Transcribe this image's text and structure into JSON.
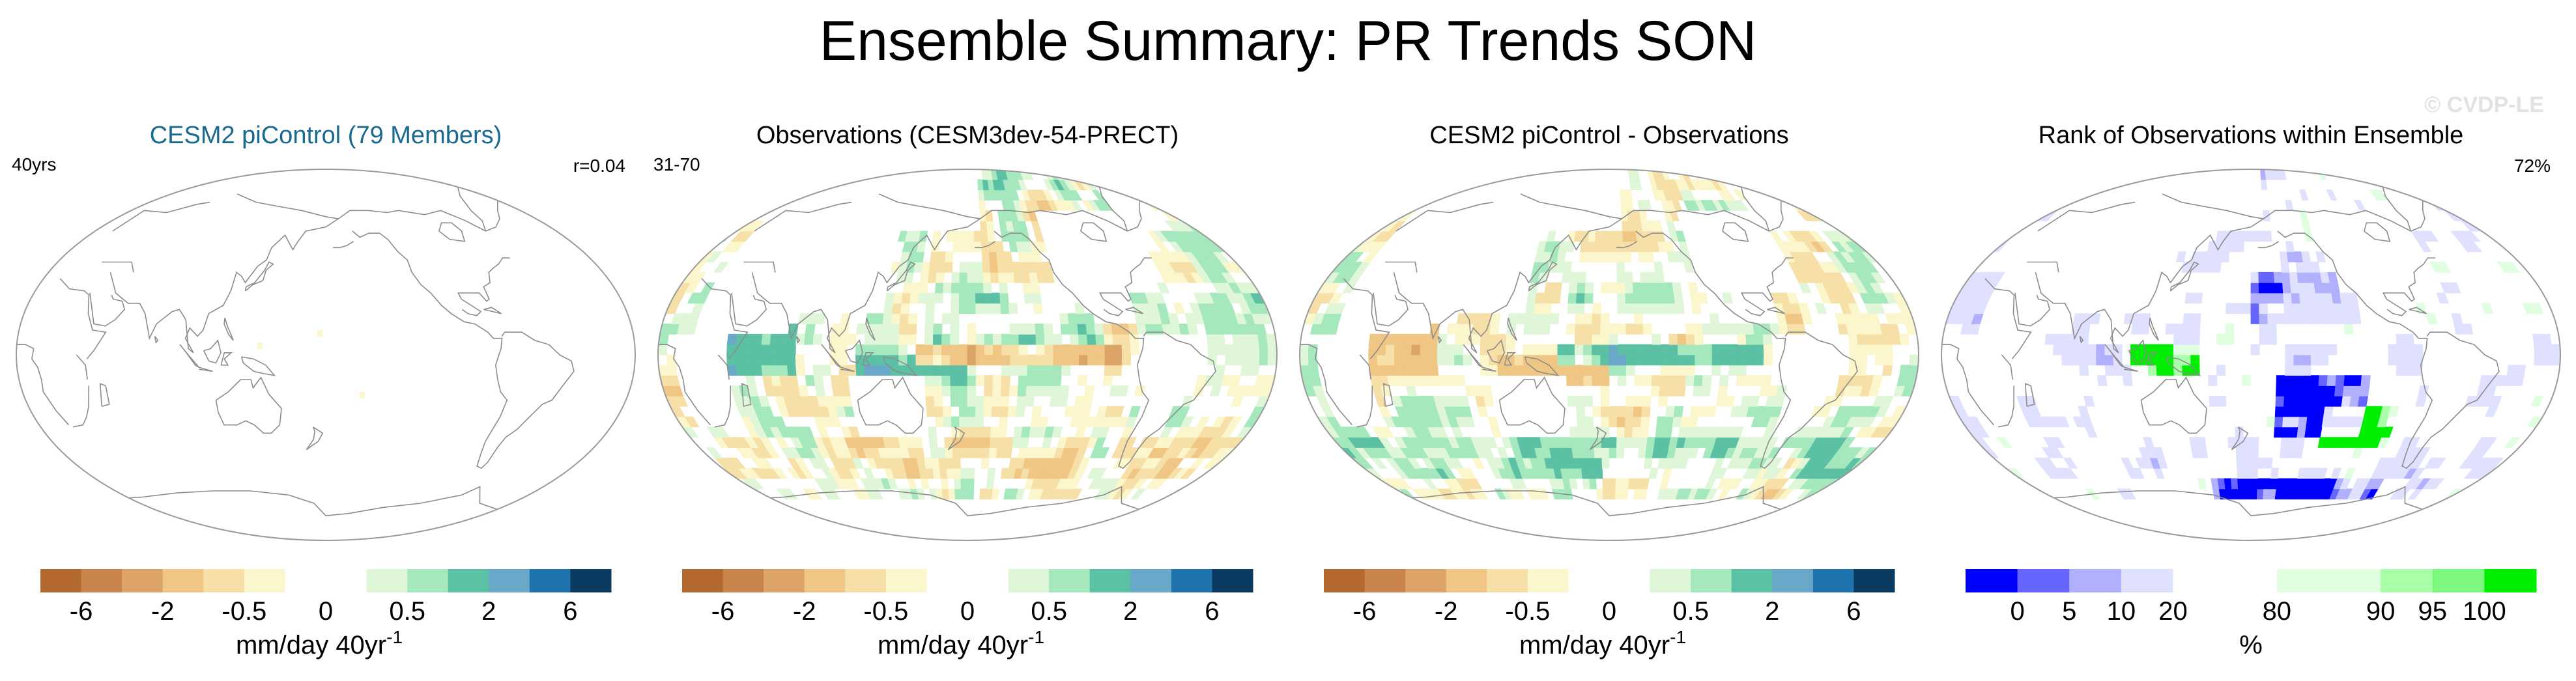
{
  "title": "Ensemble Summary: PR Trends SON",
  "watermark": "© CVDP-LE",
  "colors": {
    "title_blue": "#1a6a8f",
    "coast": "#8c8c8c",
    "border": "#9a9a9a"
  },
  "panels": [
    {
      "id": "cesm2",
      "title": "CESM2 piControl (79 Members)",
      "title_color": "#1a6a8f",
      "left_label": "40yrs",
      "right_label": "r=0.04",
      "field": "weak"
    },
    {
      "id": "obs",
      "title": "Observations (CESM3dev-54-PRECT)",
      "title_color": "#000000",
      "left_label": "31-70",
      "right_label": "",
      "field": "obs"
    },
    {
      "id": "diff",
      "title": "CESM2 piControl - Observations",
      "title_color": "#000000",
      "left_label": "",
      "right_label": "",
      "field": "diff"
    },
    {
      "id": "rank",
      "title": "Rank of Observations within Ensemble",
      "title_color": "#000000",
      "left_label": "",
      "right_label": "72%",
      "field": "rank"
    }
  ],
  "chart_data": {
    "type": "heatmap",
    "title": "Ensemble Summary: PR Trends SON",
    "projection": "global robinson, pacific-centered",
    "trend_colorbar": {
      "colors": [
        "#b46a2e",
        "#c8844a",
        "#dda468",
        "#f0c685",
        "#f6e0a7",
        "#fcf6cc",
        "#ffffff",
        "#ffffff",
        "#dff7d8",
        "#a5e8bd",
        "#5bc0a4",
        "#6aa8c9",
        "#1f74ad",
        "#0b3b60"
      ],
      "tick_labels": [
        "-6",
        "-2",
        "-0.5",
        "0",
        "0.5",
        "2",
        "6"
      ],
      "units": "mm/day 40yr",
      "units_exponent": "-1"
    },
    "rank_colorbar": {
      "colors": [
        "#0000ff",
        "#6666ff",
        "#b0b0ff",
        "#e0e0ff",
        "#ffffff",
        "#ffffff",
        "#e0ffe0",
        "#e0ffe0",
        "#a8ffa8",
        "#7df77d",
        "#00ee00"
      ],
      "tick_labels": [
        "0",
        "5",
        "10",
        "20",
        "80",
        "90",
        "95",
        "100"
      ],
      "units": "%"
    },
    "panel_summary": [
      {
        "panel": "CESM2 piControl (79 Members)",
        "trend_years": 40,
        "pattern_correlation": 0.04
      },
      {
        "panel": "Observations (CESM3dev-54-PRECT)",
        "years": "31-70"
      },
      {
        "panel": "CESM2 piControl - Observations"
      },
      {
        "panel": "Rank of Observations within Ensemble",
        "percent_in_range": 72
      }
    ]
  }
}
